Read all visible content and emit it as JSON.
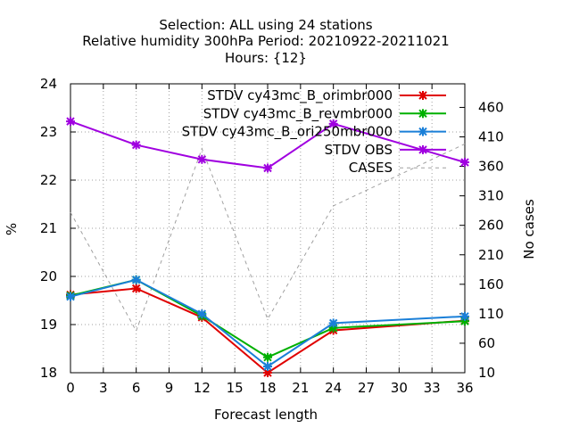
{
  "chart_data": {
    "type": "line",
    "title_lines": [
      "Selection: ALL using    24 stations",
      "Relative humidity 300hPa   Period: 20210922-20211021",
      "Hours: {12}"
    ],
    "xlabel": "Forecast length",
    "ylabel": "%",
    "y2label": "No cases",
    "xlim": [
      0,
      36
    ],
    "ylim": [
      18,
      24
    ],
    "y2lim": [
      10,
      500
    ],
    "x_ticks": [
      0,
      3,
      6,
      9,
      12,
      15,
      18,
      21,
      24,
      27,
      30,
      33,
      36
    ],
    "y_ticks": [
      18,
      19,
      20,
      21,
      22,
      23,
      24
    ],
    "y2_ticks": [
      10,
      60,
      110,
      160,
      210,
      260,
      310,
      360,
      410,
      460
    ],
    "grid": true,
    "legend_position": "top-right",
    "x": [
      0,
      6,
      12,
      18,
      24,
      36
    ],
    "series": [
      {
        "name": "STDV cy43mc_B_orimbr000",
        "color": "#e00000",
        "axis": "y",
        "values": [
          19.62,
          19.75,
          19.15,
          18.0,
          18.88,
          19.08
        ]
      },
      {
        "name": "STDV cy43mc_B_revmbr000",
        "color": "#00b000",
        "axis": "y",
        "values": [
          19.6,
          19.93,
          19.18,
          18.32,
          18.93,
          19.07
        ]
      },
      {
        "name": "STDV cy43mc_B_ori250mbr000",
        "color": "#1a7fd8",
        "axis": "y",
        "values": [
          19.58,
          19.93,
          19.22,
          18.13,
          19.03,
          19.17
        ]
      },
      {
        "name": "STDV OBS",
        "color": "#a000e0",
        "axis": "y",
        "values": [
          23.22,
          22.73,
          22.43,
          22.25,
          23.17,
          22.37
        ]
      },
      {
        "name": "CASES",
        "color": "#a0a0a0",
        "axis": "y2",
        "dashed": true,
        "values": [
          282,
          81,
          390,
          101,
          293,
          398
        ]
      }
    ]
  }
}
